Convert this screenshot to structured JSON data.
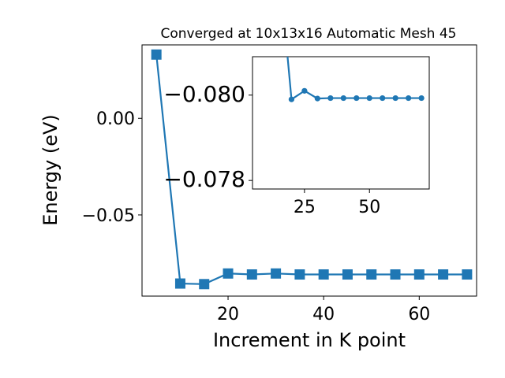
{
  "chart_data": [
    {
      "type": "line",
      "title": "Converged at 10x13x16 Automatic Mesh 45",
      "xlabel": "Increment in K point",
      "ylabel": "Energy (eV)",
      "xlim": [
        2,
        72
      ],
      "ylim": [
        -0.092,
        0.038
      ],
      "xticks": [
        20,
        40,
        60
      ],
      "yticks": [
        0.0,
        -0.05
      ],
      "ytick_labels": [
        "0.00",
        "−0.05"
      ],
      "marker": "square",
      "color": "#1f77b4",
      "series": [
        {
          "x": [
            5,
            10,
            15,
            20,
            25,
            30,
            35,
            40,
            45,
            50,
            55,
            60,
            65,
            70
          ],
          "y": [
            0.033,
            -0.0855,
            -0.0858,
            -0.0803,
            -0.0808,
            -0.0803,
            -0.0808,
            -0.0808,
            -0.0808,
            -0.0808,
            -0.0808,
            -0.0808,
            -0.0808,
            -0.0808
          ]
        }
      ]
    },
    {
      "type": "line",
      "inset": true,
      "xlim": [
        5,
        73
      ],
      "ylim": [
        -0.0778,
        -0.0809
      ],
      "xticks": [
        25,
        50
      ],
      "yticks": [
        -0.08,
        -0.078
      ],
      "ytick_labels": [
        "−0.080",
        "−0.078"
      ],
      "marker": "circle",
      "color": "#1f77b4",
      "series": [
        {
          "x": [
            15,
            20,
            25,
            30,
            35,
            40,
            45,
            50,
            55,
            60,
            65,
            70
          ],
          "y": [
            -0.0832,
            -0.0799,
            -0.0801,
            -0.07992,
            -0.07993,
            -0.07993,
            -0.07993,
            -0.07993,
            -0.07993,
            -0.07993,
            -0.07993,
            -0.07993
          ]
        }
      ]
    }
  ]
}
